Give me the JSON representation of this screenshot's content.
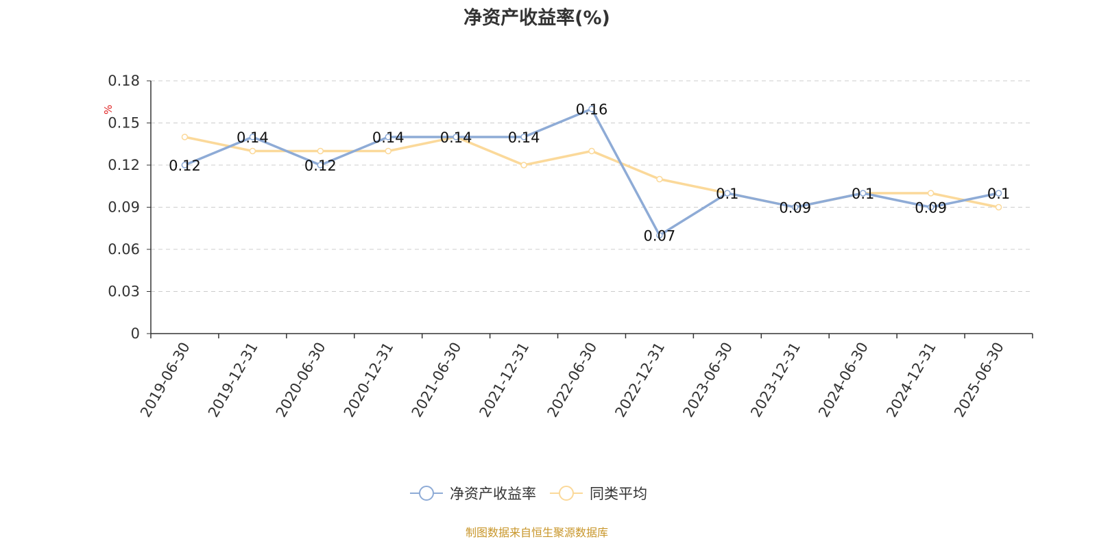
{
  "title": "净资产收益率(%)",
  "source_note": "制图数据来自恒生聚源数据库",
  "colors": {
    "series_main": "#8eabd6",
    "series_avg": "#fbd99a",
    "axis": "#333333",
    "grid": "#cccccc",
    "unit": "#e02020"
  },
  "chart_data": {
    "type": "line",
    "title": "净资产收益率(%)",
    "ylabel": "%",
    "xlabel": "",
    "ylim": [
      0,
      0.18
    ],
    "yticks": [
      "0",
      "0.03",
      "0.06",
      "0.09",
      "0.12",
      "0.15",
      "0.18"
    ],
    "grid": true,
    "legend_position": "bottom-center",
    "categories": [
      "2019-06-30",
      "2019-12-31",
      "2020-06-30",
      "2020-12-31",
      "2021-06-30",
      "2021-12-31",
      "2022-06-30",
      "2022-12-31",
      "2023-06-30",
      "2023-12-31",
      "2024-06-30",
      "2024-12-31",
      "2025-06-30"
    ],
    "series": [
      {
        "name": "净资产收益率",
        "values": [
          0.12,
          0.14,
          0.12,
          0.14,
          0.14,
          0.14,
          0.16,
          0.07,
          0.1,
          0.09,
          0.1,
          0.09,
          0.1
        ],
        "labels": [
          "0.12",
          "0.14",
          "0.12",
          "0.14",
          "0.14",
          "0.14",
          "0.16",
          "0.07",
          "0.1",
          "0.09",
          "0.1",
          "0.09",
          "0.1"
        ]
      },
      {
        "name": "同类平均",
        "values": [
          0.14,
          0.13,
          0.13,
          0.13,
          0.14,
          0.12,
          0.13,
          0.11,
          0.1,
          0.09,
          0.1,
          0.1,
          0.09
        ]
      }
    ]
  }
}
